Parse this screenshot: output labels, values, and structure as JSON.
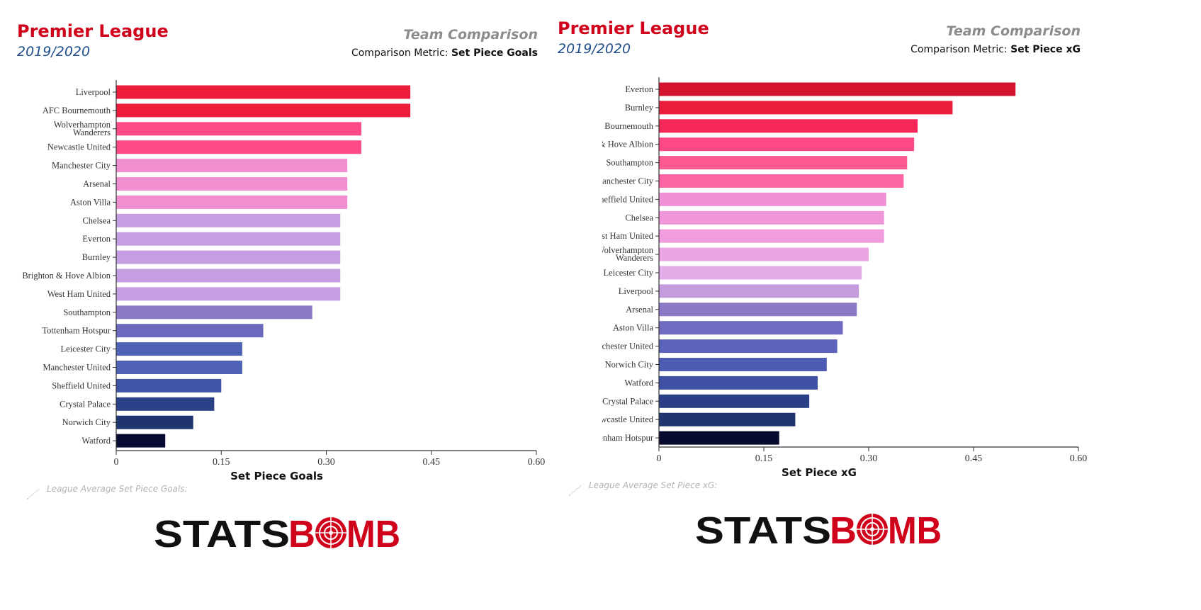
{
  "panels": [
    {
      "league": "Premier League",
      "season": "2019/2020",
      "comparison_title": "Team Comparison",
      "metric_prefix": "Comparison Metric:",
      "metric_name": "Set Piece Goals",
      "league_avg_label": "League Average Set Piece Goals:",
      "logo_text": {
        "left": "STATS",
        "right_b": "B",
        "right_mb": "MB"
      }
    },
    {
      "league": "Premier League",
      "season": "2019/2020",
      "comparison_title": "Team Comparison",
      "metric_prefix": "Comparison Metric:",
      "metric_name": "Set Piece xG",
      "league_avg_label": "League Average Set Piece xG:",
      "logo_text": {
        "left": "STATS",
        "right_b": "B",
        "right_mb": "MB"
      }
    }
  ],
  "chart_data": [
    {
      "type": "bar",
      "orientation": "horizontal",
      "xlabel": "Set Piece Goals",
      "ylabel": "",
      "xlim": [
        0,
        0.6
      ],
      "xticks": [
        "0",
        "0.15",
        "0.30",
        "0.45",
        "0.60"
      ],
      "grid": false,
      "categories": [
        "Liverpool",
        "AFC Bournemouth",
        "Wolverhampton Wanderers",
        "Newcastle United",
        "Manchester City",
        "Arsenal",
        "Aston Villa",
        "Chelsea",
        "Everton",
        "Burnley",
        "Brighton & Hove Albion",
        "West Ham United",
        "Southampton",
        "Tottenham Hotspur",
        "Leicester City",
        "Manchester United",
        "Sheffield United",
        "Crystal Palace",
        "Norwich City",
        "Watford"
      ],
      "values": [
        0.42,
        0.42,
        0.35,
        0.35,
        0.33,
        0.33,
        0.33,
        0.32,
        0.32,
        0.32,
        0.32,
        0.32,
        0.28,
        0.21,
        0.18,
        0.18,
        0.15,
        0.14,
        0.11,
        0.07
      ],
      "colors": [
        "#ee1c3b",
        "#ee1c3b",
        "#fc4a86",
        "#fc4a86",
        "#f08ecf",
        "#f08ecf",
        "#f08ecf",
        "#c59de1",
        "#c59de1",
        "#c59de1",
        "#c59de1",
        "#c59de1",
        "#8c7ac8",
        "#6b69bd",
        "#4f62b5",
        "#4f62b5",
        "#3e55a6",
        "#2b4187",
        "#1f3570",
        "#070a32"
      ]
    },
    {
      "type": "bar",
      "orientation": "horizontal",
      "xlabel": "Set Piece xG",
      "ylabel": "",
      "xlim": [
        0,
        0.6
      ],
      "xticks": [
        "0",
        "0.15",
        "0.30",
        "0.45",
        "0.60"
      ],
      "grid": false,
      "categories": [
        "Everton",
        "Burnley",
        "AFC Bournemouth",
        "Brighton & Hove Albion",
        "Southampton",
        "Manchester City",
        "Sheffield United",
        "Chelsea",
        "West Ham United",
        "Wolverhampton Wanderers",
        "Leicester City",
        "Liverpool",
        "Arsenal",
        "Aston Villa",
        "Manchester United",
        "Norwich City",
        "Watford",
        "Crystal Palace",
        "Newcastle United",
        "Tottenham Hotspur"
      ],
      "values": [
        0.51,
        0.42,
        0.37,
        0.365,
        0.355,
        0.35,
        0.325,
        0.322,
        0.322,
        0.3,
        0.29,
        0.286,
        0.283,
        0.263,
        0.255,
        0.24,
        0.227,
        0.215,
        0.195,
        0.172
      ],
      "colors": [
        "#d4142f",
        "#ec1c3c",
        "#f6285a",
        "#fd4a84",
        "#fd5a8f",
        "#fc64a4",
        "#f091d6",
        "#f096d9",
        "#f19cdc",
        "#eaa5e5",
        "#e3ace9",
        "#c59ddf",
        "#8c7ac8",
        "#6f6bc0",
        "#5c63ba",
        "#4f5cb3",
        "#3e51a2",
        "#2b3f86",
        "#20346e",
        "#07092f"
      ]
    }
  ]
}
